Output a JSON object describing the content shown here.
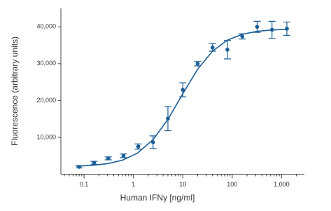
{
  "chart_data": {
    "type": "scatter",
    "x_label": "Human IFNγ [ng/ml]",
    "y_label": "Fluorescence (arbitrary units)",
    "x_scale": "log",
    "xlim": [
      0.034,
      2900
    ],
    "ylim": [
      0,
      45000
    ],
    "xticks": [
      0.1,
      1,
      10,
      100,
      {
        "value": 1000,
        "label": "1,000"
      }
    ],
    "yticks": [
      {
        "value": 10000,
        "label": "10,000"
      },
      {
        "value": 20000,
        "label": "20,000"
      },
      {
        "value": 30000,
        "label": "30,000"
      },
      {
        "value": 40000,
        "label": "40,000"
      }
    ],
    "series": [
      {
        "color": "#1b5e96",
        "x": [
          0.08,
          0.16,
          0.31,
          0.63,
          1.25,
          2.5,
          5,
          10,
          20,
          40,
          80,
          160,
          320,
          640,
          1280
        ],
        "values": [
          2000,
          3100,
          4300,
          5000,
          7500,
          8700,
          15100,
          22900,
          30000,
          34400,
          33800,
          37400,
          40000,
          39200,
          39500
        ],
        "errors": [
          300,
          400,
          400,
          500,
          700,
          1700,
          3300,
          1900,
          600,
          1000,
          2500,
          700,
          1500,
          2300,
          1800
        ]
      },
      {
        "color": "#1b5e96",
        "x": [
          0.07,
          0.15,
          0.3,
          0.6,
          1.2,
          2.5,
          5,
          10,
          20,
          40,
          80,
          160,
          320,
          640,
          1400
        ],
        "values": [
          2180,
          2410,
          2870,
          3810,
          5690,
          9370,
          14890,
          21840,
          28490,
          33410,
          36390,
          37980,
          38780,
          39160,
          39350
        ]
      }
    ]
  }
}
